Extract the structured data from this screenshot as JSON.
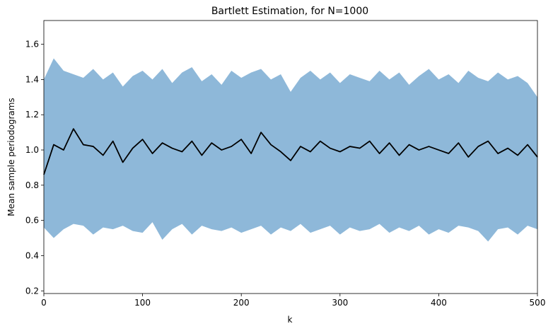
{
  "chart_data": {
    "type": "area",
    "title": "Bartlett Estimation, for N=1000",
    "xlabel": "k",
    "ylabel": "Mean sample periodograms",
    "xlim": [
      0,
      500
    ],
    "ylim": [
      0.185,
      1.735
    ],
    "xticks": [
      0,
      100,
      200,
      300,
      400,
      500
    ],
    "yticks": [
      0.2,
      0.4,
      0.6,
      0.8,
      1.0,
      1.2,
      1.4,
      1.6
    ],
    "grid": false,
    "legend": "none",
    "x": [
      0,
      10,
      20,
      30,
      40,
      50,
      60,
      70,
      80,
      90,
      100,
      110,
      120,
      130,
      140,
      150,
      160,
      170,
      180,
      190,
      200,
      210,
      220,
      230,
      240,
      250,
      260,
      270,
      280,
      290,
      300,
      310,
      320,
      330,
      340,
      350,
      360,
      370,
      380,
      390,
      400,
      410,
      420,
      430,
      440,
      450,
      460,
      470,
      480,
      490,
      500
    ],
    "series": [
      {
        "kind": "line",
        "color": "#000000",
        "values": [
          0.86,
          1.03,
          1.0,
          1.12,
          1.03,
          1.02,
          0.97,
          1.05,
          0.93,
          1.01,
          1.06,
          0.98,
          1.04,
          1.01,
          0.99,
          1.05,
          0.97,
          1.04,
          1.0,
          1.02,
          1.06,
          0.98,
          1.1,
          1.03,
          0.99,
          0.94,
          1.02,
          0.99,
          1.05,
          1.01,
          0.99,
          1.02,
          1.01,
          1.05,
          0.98,
          1.04,
          0.97,
          1.03,
          1.0,
          1.02,
          1.0,
          0.98,
          1.04,
          0.96,
          1.02,
          1.05,
          0.98,
          1.01,
          0.97,
          1.03,
          0.96
        ]
      },
      {
        "kind": "band",
        "color": "#8eb8d9",
        "lower": [
          0.56,
          0.5,
          0.55,
          0.58,
          0.57,
          0.52,
          0.56,
          0.55,
          0.57,
          0.54,
          0.53,
          0.59,
          0.49,
          0.55,
          0.58,
          0.52,
          0.57,
          0.55,
          0.54,
          0.56,
          0.53,
          0.55,
          0.57,
          0.52,
          0.56,
          0.54,
          0.58,
          0.53,
          0.55,
          0.57,
          0.52,
          0.56,
          0.54,
          0.55,
          0.58,
          0.53,
          0.56,
          0.54,
          0.57,
          0.52,
          0.55,
          0.53,
          0.57,
          0.56,
          0.54,
          0.48,
          0.55,
          0.56,
          0.52,
          0.57,
          0.55
        ],
        "upper": [
          1.4,
          1.52,
          1.45,
          1.43,
          1.41,
          1.46,
          1.4,
          1.44,
          1.36,
          1.42,
          1.45,
          1.4,
          1.46,
          1.38,
          1.44,
          1.47,
          1.39,
          1.43,
          1.37,
          1.45,
          1.41,
          1.44,
          1.46,
          1.4,
          1.43,
          1.33,
          1.41,
          1.45,
          1.4,
          1.44,
          1.38,
          1.43,
          1.41,
          1.39,
          1.45,
          1.4,
          1.44,
          1.37,
          1.42,
          1.46,
          1.4,
          1.43,
          1.38,
          1.45,
          1.41,
          1.39,
          1.44,
          1.4,
          1.42,
          1.38,
          1.3
        ]
      }
    ]
  }
}
